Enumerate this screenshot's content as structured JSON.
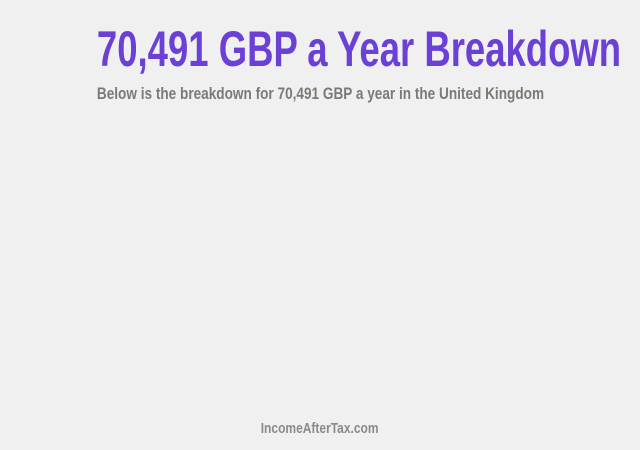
{
  "header": {
    "title": "70,491 GBP a Year Breakdown",
    "subtitle": "Below is the breakdown for 70,491 GBP a year in the United Kingdom"
  },
  "footer": {
    "site": "IncomeAfterTax.com"
  },
  "colors": {
    "title": "#6a40d6",
    "subtitle": "#7a7a7a",
    "background": "#f0f0f0"
  }
}
